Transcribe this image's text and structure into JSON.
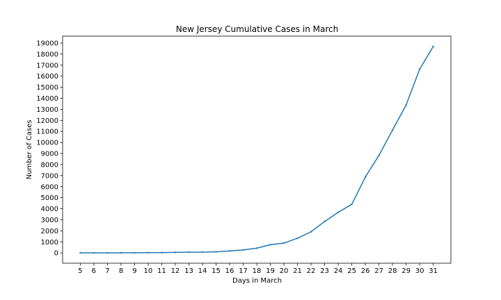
{
  "chart_data": {
    "type": "line",
    "title": "New Jersey Cumulative Cases in March",
    "xlabel": "Days in March",
    "ylabel": "Number of Cases",
    "x": [
      5,
      6,
      7,
      8,
      9,
      10,
      11,
      12,
      13,
      14,
      15,
      16,
      17,
      18,
      19,
      20,
      21,
      22,
      23,
      24,
      25,
      26,
      27,
      28,
      29,
      30,
      31
    ],
    "series": [
      {
        "values": [
          2,
          4,
          5,
          11,
          13,
          24,
          29,
          50,
          69,
          69,
          98,
          178,
          267,
          427,
          742,
          890,
          1327,
          1914,
          2844,
          3675,
          4402,
          6876,
          8825,
          11124,
          13386,
          16636,
          18696
        ],
        "color": "#1f77b4"
      }
    ],
    "x_ticks": [
      "5",
      "6",
      "7",
      "8",
      "9",
      "10",
      "11",
      "12",
      "13",
      "14",
      "15",
      "16",
      "17",
      "18",
      "19",
      "20",
      "21",
      "22",
      "23",
      "24",
      "25",
      "26",
      "27",
      "28",
      "29",
      "30",
      "31"
    ],
    "y_ticks": [
      "0",
      "1000",
      "2000",
      "3000",
      "4000",
      "5000",
      "6000",
      "7000",
      "8000",
      "9000",
      "10000",
      "11000",
      "12000",
      "13000",
      "14000",
      "15000",
      "16000",
      "17000",
      "18000",
      "19000"
    ],
    "xlim": [
      3.7,
      32.3
    ],
    "ylim": [
      -932,
      19629
    ],
    "grid": false,
    "legend": "none"
  }
}
